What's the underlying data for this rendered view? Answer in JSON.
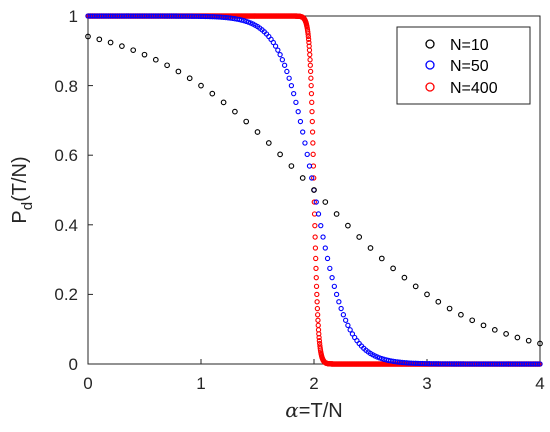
{
  "chart_data": {
    "type": "scatter",
    "xlabel_symbol": "α",
    "xlabel_rest": "=T/N",
    "ylabel_main": "P",
    "ylabel_sub": "d",
    "ylabel_rest": "(T/N)",
    "xlim": [
      0,
      4
    ],
    "ylim": [
      0,
      1
    ],
    "x_ticks": [
      "0",
      "1",
      "2",
      "3",
      "4"
    ],
    "y_ticks": [
      "0",
      "0.2",
      "0.4",
      "0.6",
      "0.8",
      "1"
    ],
    "grid": false,
    "legend_position": "top-right",
    "curve_model": "P_d = 1 / (1 + exp(k*(x - 2))) with k = N*ln2/5, sampled at step 0.1 (N=10), 1/N (N=50, N=400)",
    "series": [
      {
        "name": "N=10",
        "color": "#000000",
        "N": 10,
        "k": 1.386,
        "x_step": 0.1
      },
      {
        "name": "N=50",
        "color": "#0000ff",
        "N": 50,
        "k": 6.93,
        "x_step": 0.02
      },
      {
        "name": "N=400",
        "color": "#ff0000",
        "N": 400,
        "k": 55.45,
        "x_step": 0.0025
      }
    ]
  }
}
